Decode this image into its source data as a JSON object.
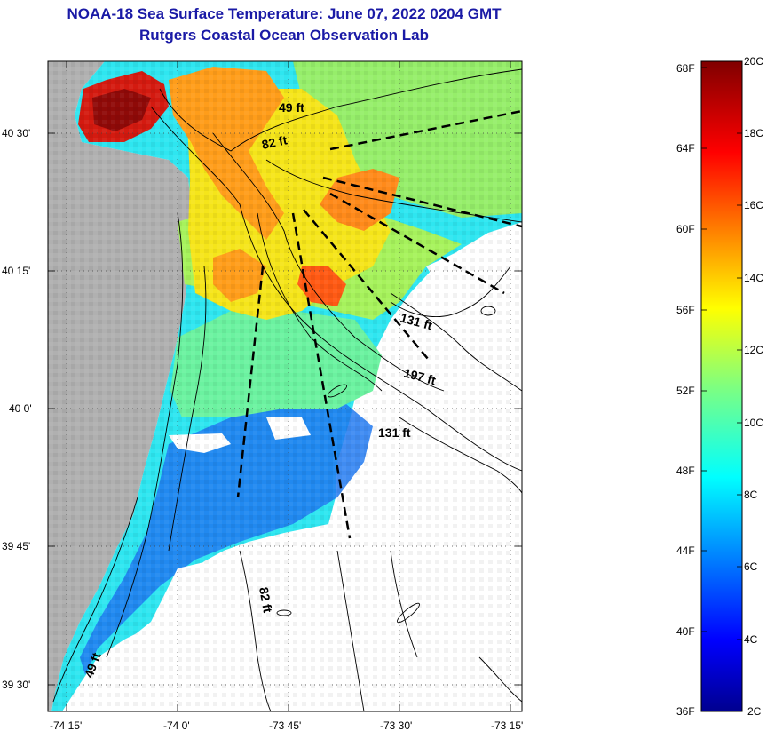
{
  "title": "NOAA-18 Sea Surface Temperature:  June 07, 2022 0204 GMT",
  "subtitle": "Rutgers Coastal Ocean Observation Lab",
  "map": {
    "lat_labels": [
      "40 30'",
      "40 15'",
      "40 0'",
      "39 45'",
      "39 30'"
    ],
    "lon_labels": [
      "-74 15'",
      "-74 0'",
      "-73 45'",
      "-73 30'",
      "-73 15'"
    ],
    "contour_labels": [
      "49 ft",
      "82 ft",
      "131 ft",
      "197 ft",
      "131 ft",
      "82 ft",
      "49 ft"
    ],
    "colors": {
      "land": "#b0b0b0",
      "no_data": "#ffffff"
    }
  },
  "colorbar": {
    "f_labels": [
      "68F",
      "64F",
      "60F",
      "56F",
      "52F",
      "48F",
      "44F",
      "40F",
      "36F"
    ],
    "c_labels": [
      "20C",
      "18C",
      "16C",
      "14C",
      "12C",
      "10C",
      "8C",
      "6C",
      "4C",
      "2C"
    ]
  }
}
